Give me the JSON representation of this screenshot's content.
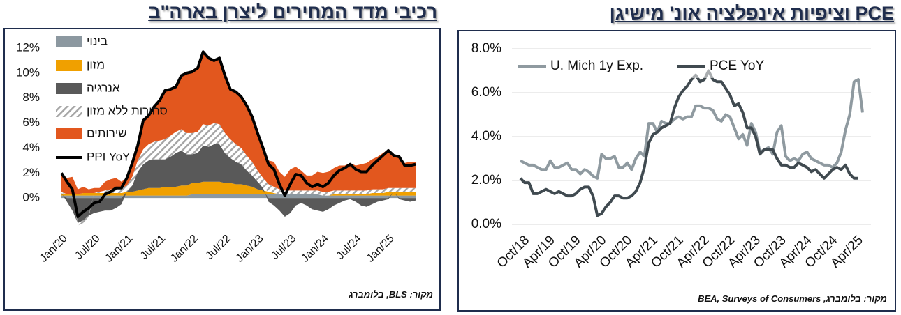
{
  "chart_data": [
    {
      "type": "stacked_area",
      "title": "רכיבי מדד המחירים ליצרן בארה\"ב",
      "source": "מקור: BLS, בלומברג",
      "categories": [
        "Jan/20",
        null,
        null,
        null,
        null,
        null,
        "Jul/20",
        null,
        null,
        null,
        null,
        null,
        "Jan/21",
        null,
        null,
        null,
        null,
        null,
        "Jul/21",
        null,
        null,
        null,
        null,
        null,
        "Jan/22",
        null,
        null,
        null,
        null,
        null,
        "Jul/22",
        null,
        null,
        null,
        null,
        null,
        "Jan/23",
        null,
        null,
        null,
        null,
        null,
        "Jul/23",
        null,
        null,
        null,
        null,
        null,
        "Jan/24",
        null,
        null,
        null,
        null,
        null,
        "Jul/24",
        null,
        null,
        null,
        null,
        null,
        "Jan/25",
        null,
        null,
        null,
        null,
        null
      ],
      "ylim": [
        -2,
        12.5
      ],
      "yticks": [
        {
          "value": 0,
          "label": "0%"
        },
        {
          "value": 2,
          "label": "2%"
        },
        {
          "value": 4,
          "label": "4%"
        },
        {
          "value": 6,
          "label": "6%"
        },
        {
          "value": 8,
          "label": "8%"
        },
        {
          "value": 10,
          "label": "10%"
        },
        {
          "value": 12,
          "label": "12%"
        }
      ],
      "grid": false,
      "legend": "upper left",
      "series": [
        {
          "name": "בינוי",
          "type": "area",
          "color": "#8c98a0",
          "values": [
            0.2,
            0.2,
            0.2,
            0.2,
            0.2,
            0.2,
            0.2,
            0.2,
            0.2,
            0.2,
            0.2,
            0.2,
            0.2,
            0.2,
            0.2,
            0.2,
            0.2,
            0.2,
            0.2,
            0.2,
            0.2,
            0.2,
            0.2,
            0.2,
            0.3,
            0.3,
            0.3,
            0.3,
            0.3,
            0.3,
            0.3,
            0.3,
            0.3,
            0.3,
            0.3,
            0.3,
            0.3,
            0.3,
            0.3,
            0.3,
            0.3,
            0.3,
            0.3,
            0.3,
            0.3,
            0.3,
            0.3,
            0.3,
            0.2,
            0.2,
            0.2,
            0.2,
            0.2,
            0.2,
            0.2,
            0.2,
            0.2,
            0.2,
            0.2,
            0.2,
            0.2,
            0.2,
            0.2,
            0.2,
            0.2,
            0.2
          ]
        },
        {
          "name": "מזון",
          "type": "area",
          "color": "#f0a000",
          "values": [
            0.1,
            0.1,
            0.1,
            0.1,
            0.2,
            0.2,
            0.2,
            0.2,
            0.2,
            0.2,
            0.2,
            0.2,
            0.3,
            0.3,
            0.4,
            0.5,
            0.6,
            0.6,
            0.6,
            0.7,
            0.7,
            0.7,
            0.8,
            0.8,
            0.9,
            0.9,
            1.0,
            1.0,
            1.0,
            1.0,
            0.9,
            0.9,
            0.8,
            0.8,
            0.7,
            0.6,
            0.4,
            0.3,
            0.2,
            0.1,
            0,
            0,
            0,
            0,
            0,
            0,
            0,
            0,
            0,
            0,
            0.1,
            0.1,
            0.1,
            0.1,
            0.1,
            0.1,
            0.1,
            0.2,
            0.2,
            0.2,
            0.3,
            0.3,
            0.3,
            0.3,
            0.3,
            0.3
          ]
        },
        {
          "name": "אנרגיה",
          "type": "area",
          "color": "#595959",
          "values": [
            0.1,
            -0.3,
            -1.0,
            -2.0,
            -1.8,
            -1.4,
            -1.2,
            -1.1,
            -1.0,
            -1.0,
            -0.8,
            -0.5,
            0,
            0.5,
            1.5,
            2.0,
            2.2,
            2.3,
            2.3,
            2.2,
            2.4,
            2.7,
            2.8,
            2.5,
            2.3,
            2.4,
            2.9,
            2.8,
            3.0,
            3.0,
            2.4,
            2.0,
            1.8,
            1.6,
            1.2,
            0.9,
            0.6,
            0.2,
            -0.3,
            -0.6,
            -1.0,
            -1.5,
            -1.2,
            -0.6,
            -0.4,
            -0.6,
            -0.9,
            -1.0,
            -1.1,
            -0.9,
            -0.6,
            -0.4,
            -0.2,
            -0.1,
            -0.3,
            -0.6,
            -0.7,
            -0.5,
            -0.3,
            -0.2,
            -0.1,
            0,
            -0.1,
            -0.2,
            -0.3,
            -0.2
          ]
        },
        {
          "name": "סחורות ללא מזון",
          "type": "area",
          "color": "#a6a6a6",
          "hatch": true,
          "values": [
            0.1,
            0,
            0,
            -0.2,
            -0.2,
            -0.1,
            0,
            0.1,
            0.2,
            0.3,
            0.3,
            0.4,
            0.5,
            0.7,
            0.9,
            1.2,
            1.3,
            1.4,
            1.5,
            1.6,
            1.7,
            1.7,
            1.7,
            1.7,
            1.7,
            1.7,
            1.7,
            1.7,
            1.7,
            1.6,
            1.6,
            1.5,
            1.4,
            1.3,
            1.2,
            1.1,
            0.9,
            0.8,
            0.6,
            0.5,
            0.4,
            0.3,
            0.3,
            0.3,
            0.3,
            0.3,
            0.3,
            0.3,
            0.3,
            0.3,
            0.3,
            0.3,
            0.3,
            0.3,
            0.3,
            0.3,
            0.3,
            0.3,
            0.3,
            0.3,
            0.3,
            0.3,
            0.3,
            0.3,
            0.3,
            0.3
          ]
        },
        {
          "name": "שירותים",
          "type": "area",
          "color": "#e2571e",
          "values": [
            1.5,
            1.3,
            1.4,
            0.4,
            0.5,
            0.3,
            0.4,
            0.3,
            0.7,
            0.8,
            0.9,
            0.5,
            0.6,
            1.1,
            1.2,
            2.3,
            2.3,
            2.8,
            3.2,
            3.9,
            3.7,
            3.6,
            4.3,
            4.8,
            4.9,
            5.1,
            5.8,
            5.4,
            5.0,
            5.3,
            4.6,
            4.0,
            4.2,
            4.1,
            4.0,
            3.6,
            3.0,
            2.4,
            1.9,
            2.0,
            1.4,
            1.1,
            1.7,
            1.9,
            1.6,
            1.2,
            1.2,
            1.5,
            1.5,
            1.6,
            1.8,
            2.0,
            2.0,
            2.2,
            2.0,
            2.1,
            2.2,
            2.4,
            2.6,
            2.9,
            3.1,
            2.6,
            2.6,
            2.0,
            2.1,
            2.1
          ]
        },
        {
          "name": "PPI YoY",
          "type": "line",
          "color": "#000000",
          "values": [
            2.0,
            1.3,
            0.7,
            -1.5,
            -1.1,
            -0.8,
            -0.4,
            -0.3,
            0.3,
            0.5,
            0.8,
            0.8,
            1.6,
            2.8,
            4.2,
            6.2,
            6.6,
            7.3,
            7.8,
            8.6,
            8.7,
            8.9,
            9.8,
            10.0,
            10.1,
            10.4,
            11.7,
            11.2,
            11.0,
            11.2,
            9.8,
            8.7,
            8.5,
            8.1,
            7.4,
            6.5,
            5.2,
            4.0,
            2.7,
            2.3,
            1.1,
            0.2,
            1.1,
            1.9,
            1.8,
            1.2,
            0.9,
            1.1,
            0.9,
            1.2,
            1.8,
            2.2,
            2.4,
            2.7,
            2.3,
            2.1,
            2.1,
            2.6,
            3.0,
            3.4,
            3.8,
            3.4,
            3.3,
            2.6,
            2.6,
            2.7
          ]
        }
      ]
    },
    {
      "type": "line",
      "title": "PCE וציפיות אינפלציה אונ' מישיגן",
      "source": "מקור: בלומברג, BEA, Surveys of Consumers",
      "categories": [
        "Oct/18",
        null,
        null,
        null,
        null,
        null,
        "Apr/19",
        null,
        null,
        null,
        null,
        null,
        "Oct/19",
        null,
        null,
        null,
        null,
        null,
        "Apr/20",
        null,
        null,
        null,
        null,
        null,
        "Oct/20",
        null,
        null,
        null,
        null,
        null,
        "Apr/21",
        null,
        null,
        null,
        null,
        null,
        "Oct/21",
        null,
        null,
        null,
        null,
        null,
        "Apr/22",
        null,
        null,
        null,
        null,
        null,
        "Oct/22",
        null,
        null,
        null,
        null,
        null,
        "Apr/23",
        null,
        null,
        null,
        null,
        null,
        "Oct/23",
        null,
        null,
        null,
        null,
        null,
        "Apr/24",
        null,
        null,
        null,
        null,
        null,
        "Oct/24",
        null,
        null,
        null,
        null,
        null,
        "Apr/25",
        null,
        null
      ],
      "ylim": [
        0,
        8
      ],
      "yticks": [
        {
          "value": 0,
          "label": "0.0%"
        },
        {
          "value": 2,
          "label": "2.0%"
        },
        {
          "value": 4,
          "label": "4.0%"
        },
        {
          "value": 6,
          "label": "6.0%"
        },
        {
          "value": 8,
          "label": "8.0%"
        }
      ],
      "grid": true,
      "legend": "upper left",
      "series": [
        {
          "name": "U. Mich 1y Exp.",
          "color": "#8f9aa0",
          "values": [
            2.9,
            2.8,
            2.7,
            2.7,
            2.6,
            2.5,
            2.5,
            2.9,
            2.6,
            2.6,
            2.7,
            2.8,
            2.5,
            2.5,
            2.3,
            2.5,
            2.4,
            2.2,
            2.1,
            3.2,
            3.0,
            3.0,
            3.1,
            2.6,
            2.6,
            2.8,
            2.5,
            3.0,
            3.3,
            3.1,
            4.6,
            4.6,
            4.2,
            4.7,
            4.6,
            4.6,
            4.8,
            4.9,
            4.8,
            4.9,
            4.9,
            5.4,
            5.4,
            5.3,
            5.3,
            5.2,
            4.8,
            4.7,
            5.0,
            4.9,
            4.4,
            3.9,
            4.1,
            3.6,
            4.6,
            4.2,
            3.3,
            3.4,
            3.5,
            3.2,
            4.2,
            4.5,
            3.1,
            2.9,
            3.0,
            2.9,
            3.2,
            3.3,
            3.0,
            2.9,
            2.8,
            2.7,
            2.7,
            2.6,
            2.8,
            3.3,
            4.3,
            5.0,
            6.5,
            6.6,
            5.1
          ]
        },
        {
          "name": "PCE YoY",
          "color": "#404a50",
          "values": [
            2.1,
            1.9,
            1.9,
            1.4,
            1.4,
            1.5,
            1.6,
            1.5,
            1.4,
            1.5,
            1.4,
            1.3,
            1.3,
            1.4,
            1.6,
            1.7,
            1.7,
            1.3,
            0.4,
            0.5,
            0.8,
            1.0,
            1.3,
            1.3,
            1.2,
            1.2,
            1.3,
            1.5,
            1.9,
            2.6,
            3.7,
            4.1,
            4.2,
            4.4,
            4.5,
            4.6,
            5.3,
            5.8,
            6.1,
            6.3,
            6.6,
            6.8,
            6.5,
            6.6,
            7.0,
            6.6,
            6.5,
            6.5,
            6.2,
            5.9,
            5.4,
            5.5,
            5.1,
            4.4,
            4.4,
            4.0,
            3.2,
            3.4,
            3.4,
            3.4,
            3.0,
            2.7,
            2.7,
            2.6,
            2.6,
            2.8,
            2.7,
            2.6,
            2.4,
            2.5,
            2.3,
            2.1,
            2.3,
            2.5,
            2.6,
            2.5,
            2.7,
            2.3,
            2.1,
            2.1,
            null
          ]
        }
      ]
    }
  ]
}
